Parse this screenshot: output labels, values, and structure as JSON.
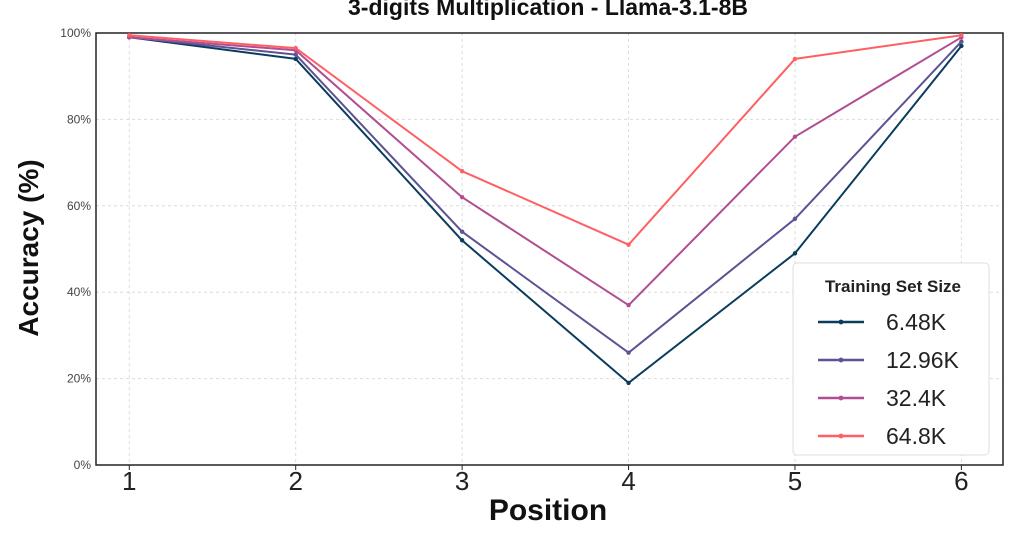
{
  "chart_data": {
    "type": "line",
    "title": "3-digits Multiplication - Llama-3.1-8B",
    "xlabel": "Position",
    "ylabel": "Accuracy (%)",
    "x": [
      1,
      2,
      3,
      4,
      5,
      6
    ],
    "x_tick_labels": [
      "1",
      "2",
      "3",
      "4",
      "5",
      "6"
    ],
    "xlim": [
      0.8,
      6.25
    ],
    "ylim": [
      0,
      100
    ],
    "y_ticks": [
      0,
      20,
      40,
      60,
      80,
      100
    ],
    "y_tick_labels": [
      "0%",
      "20%",
      "40%",
      "60%",
      "80%",
      "100%"
    ],
    "grid": true,
    "legend": {
      "title": "Training Set Size",
      "placement": "lower-right"
    },
    "series": [
      {
        "name": "6.48K",
        "color": "#0b3c5d",
        "values": [
          99,
          94,
          52,
          19,
          49,
          97
        ]
      },
      {
        "name": "12.96K",
        "color": "#5b5393",
        "values": [
          99,
          95,
          54,
          26,
          57,
          98
        ]
      },
      {
        "name": "32.4K",
        "color": "#b14d92",
        "values": [
          99,
          96,
          62,
          37,
          76,
          99
        ]
      },
      {
        "name": "64.8K",
        "color": "#ff5f62",
        "values": [
          99.5,
          96.5,
          68,
          51,
          94,
          99.5
        ]
      }
    ]
  }
}
